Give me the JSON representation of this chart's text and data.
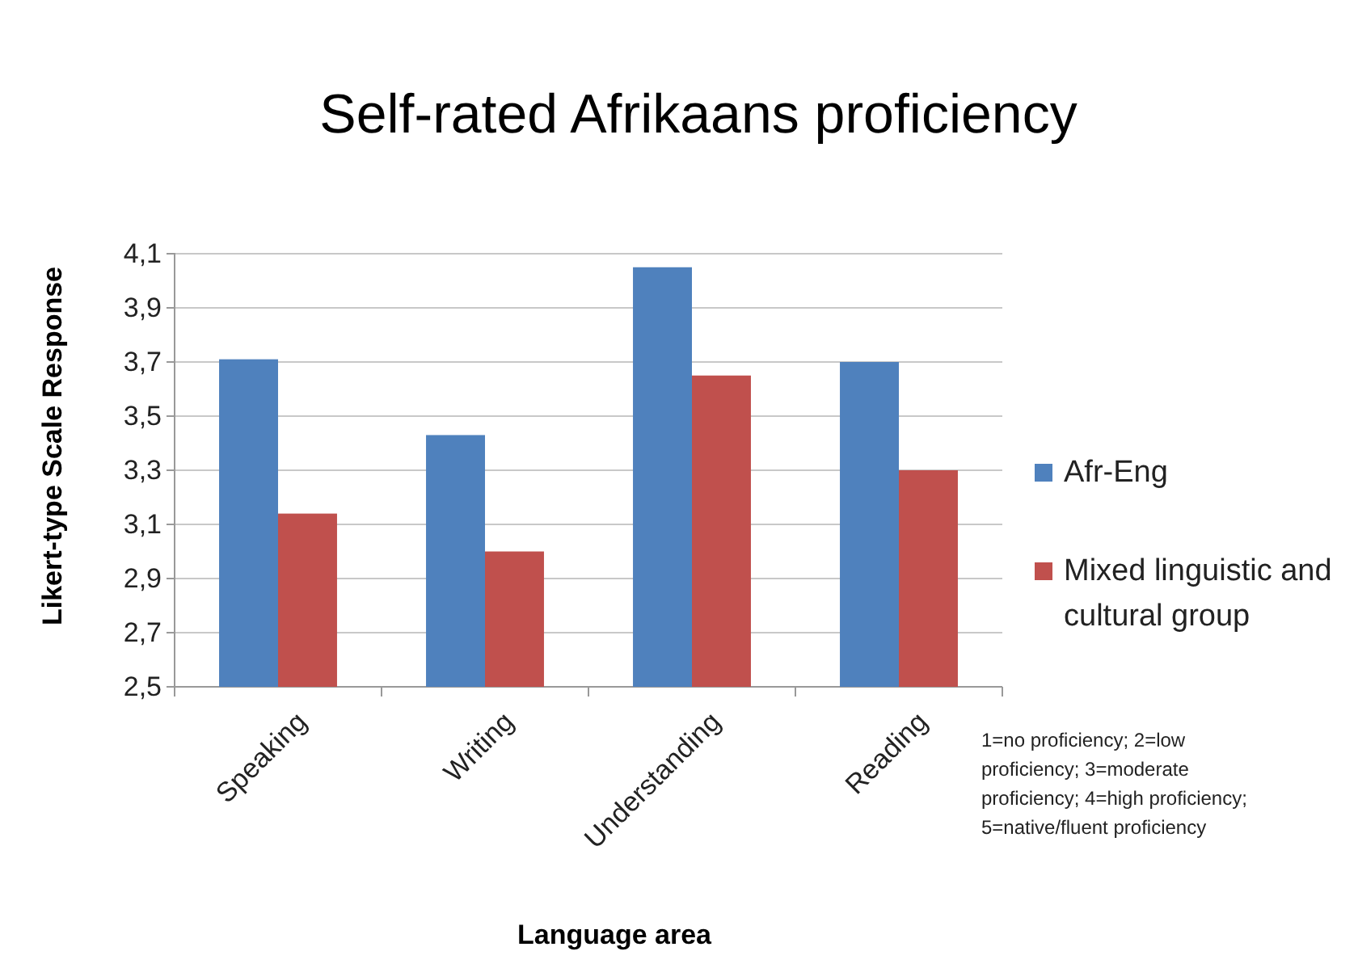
{
  "chart_data": {
    "type": "bar",
    "title": "Self-rated Afrikaans proficiency",
    "xlabel": "Language area",
    "ylabel": "Likert-type  Scale Response",
    "categories": [
      "Speaking",
      "Writing",
      "Understanding",
      "Reading"
    ],
    "series": [
      {
        "name": "Afr-Eng",
        "color": "#4f81bd",
        "values": [
          3.71,
          3.43,
          4.05,
          3.7
        ]
      },
      {
        "name": "Mixed linguistic and cultural group",
        "color": "#c0504d",
        "values": [
          3.14,
          3.0,
          3.65,
          3.3
        ]
      }
    ],
    "ylim": [
      2.5,
      4.1
    ],
    "yticks": [
      {
        "value": 2.5,
        "label": "2,5"
      },
      {
        "value": 2.7,
        "label": "2,7"
      },
      {
        "value": 2.9,
        "label": "2,9"
      },
      {
        "value": 3.1,
        "label": "3,1"
      },
      {
        "value": 3.3,
        "label": "3,3"
      },
      {
        "value": 3.5,
        "label": "3,5"
      },
      {
        "value": 3.7,
        "label": "3,7"
      },
      {
        "value": 3.9,
        "label": "3,9"
      },
      {
        "value": 4.1,
        "label": "4,1"
      }
    ],
    "grid": "y",
    "legend": "right",
    "annotations": [
      "1=no proficiency; 2=low proficiency; 3=moderate proficiency; 4=high proficiency; 5=native/fluent proficiency"
    ]
  }
}
